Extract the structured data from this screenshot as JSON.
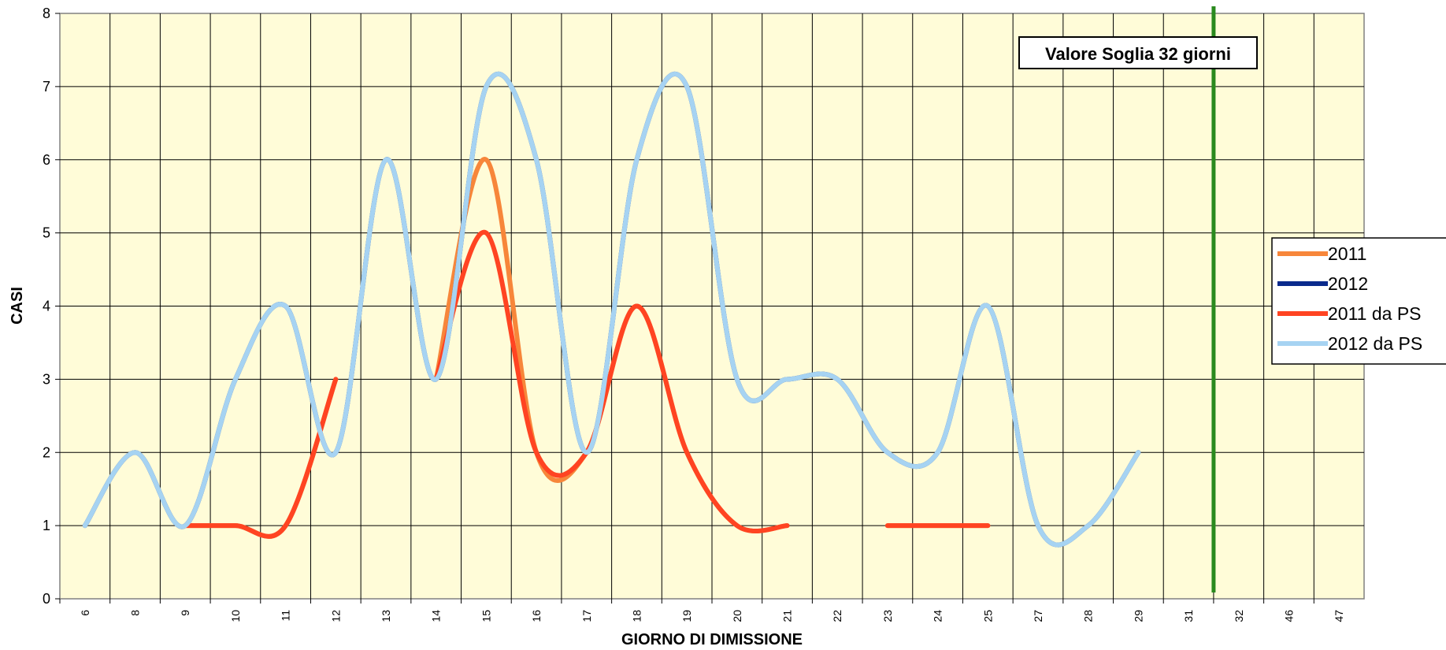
{
  "chart_data": {
    "type": "line",
    "xlabel": "GIORNO DI DIMISSIONE",
    "ylabel": "CASI",
    "ylim": [
      0,
      8
    ],
    "yticks": [
      "0",
      "1",
      "2",
      "3",
      "4",
      "5",
      "6",
      "7",
      "8"
    ],
    "categories": [
      "6",
      "8",
      "9",
      "10",
      "11",
      "12",
      "13",
      "14",
      "15",
      "16",
      "17",
      "18",
      "19",
      "20",
      "21",
      "22",
      "23",
      "24",
      "25",
      "27",
      "28",
      "29",
      "31",
      "32",
      "46",
      "47"
    ],
    "grid": true,
    "smooth": true,
    "legend_position": "right",
    "series": [
      {
        "name": "2011",
        "color": "#F7863A",
        "values": [
          null,
          null,
          1,
          1,
          1,
          3,
          null,
          3,
          6,
          2,
          2,
          4,
          2,
          1,
          1,
          null,
          1,
          1,
          1,
          null,
          null,
          null,
          null,
          null,
          null,
          null
        ]
      },
      {
        "name": "2012",
        "color": "#0A2A8C",
        "values": [
          1,
          2,
          1,
          3,
          4,
          2,
          6,
          3,
          7,
          6,
          2,
          6,
          7,
          3,
          3,
          3,
          2,
          2,
          4,
          1,
          1,
          2,
          null,
          null,
          null,
          null
        ]
      },
      {
        "name": "2011 da PS",
        "color": "#FF4422",
        "values": [
          null,
          null,
          1,
          1,
          1,
          3,
          null,
          3,
          5,
          2,
          2,
          4,
          2,
          1,
          1,
          null,
          1,
          1,
          1,
          null,
          null,
          null,
          null,
          null,
          null,
          null
        ]
      },
      {
        "name": "2012 da PS",
        "color": "#A6D3F2",
        "values": [
          1,
          2,
          1,
          3,
          4,
          2,
          6,
          3,
          7,
          6,
          2,
          6,
          7,
          3,
          3,
          3,
          2,
          2,
          4,
          1,
          1,
          2,
          null,
          null,
          null,
          null
        ]
      }
    ],
    "threshold": {
      "category": "32",
      "color": "#2A8A1E",
      "label": "Valore Soglia 32 giorni"
    }
  }
}
